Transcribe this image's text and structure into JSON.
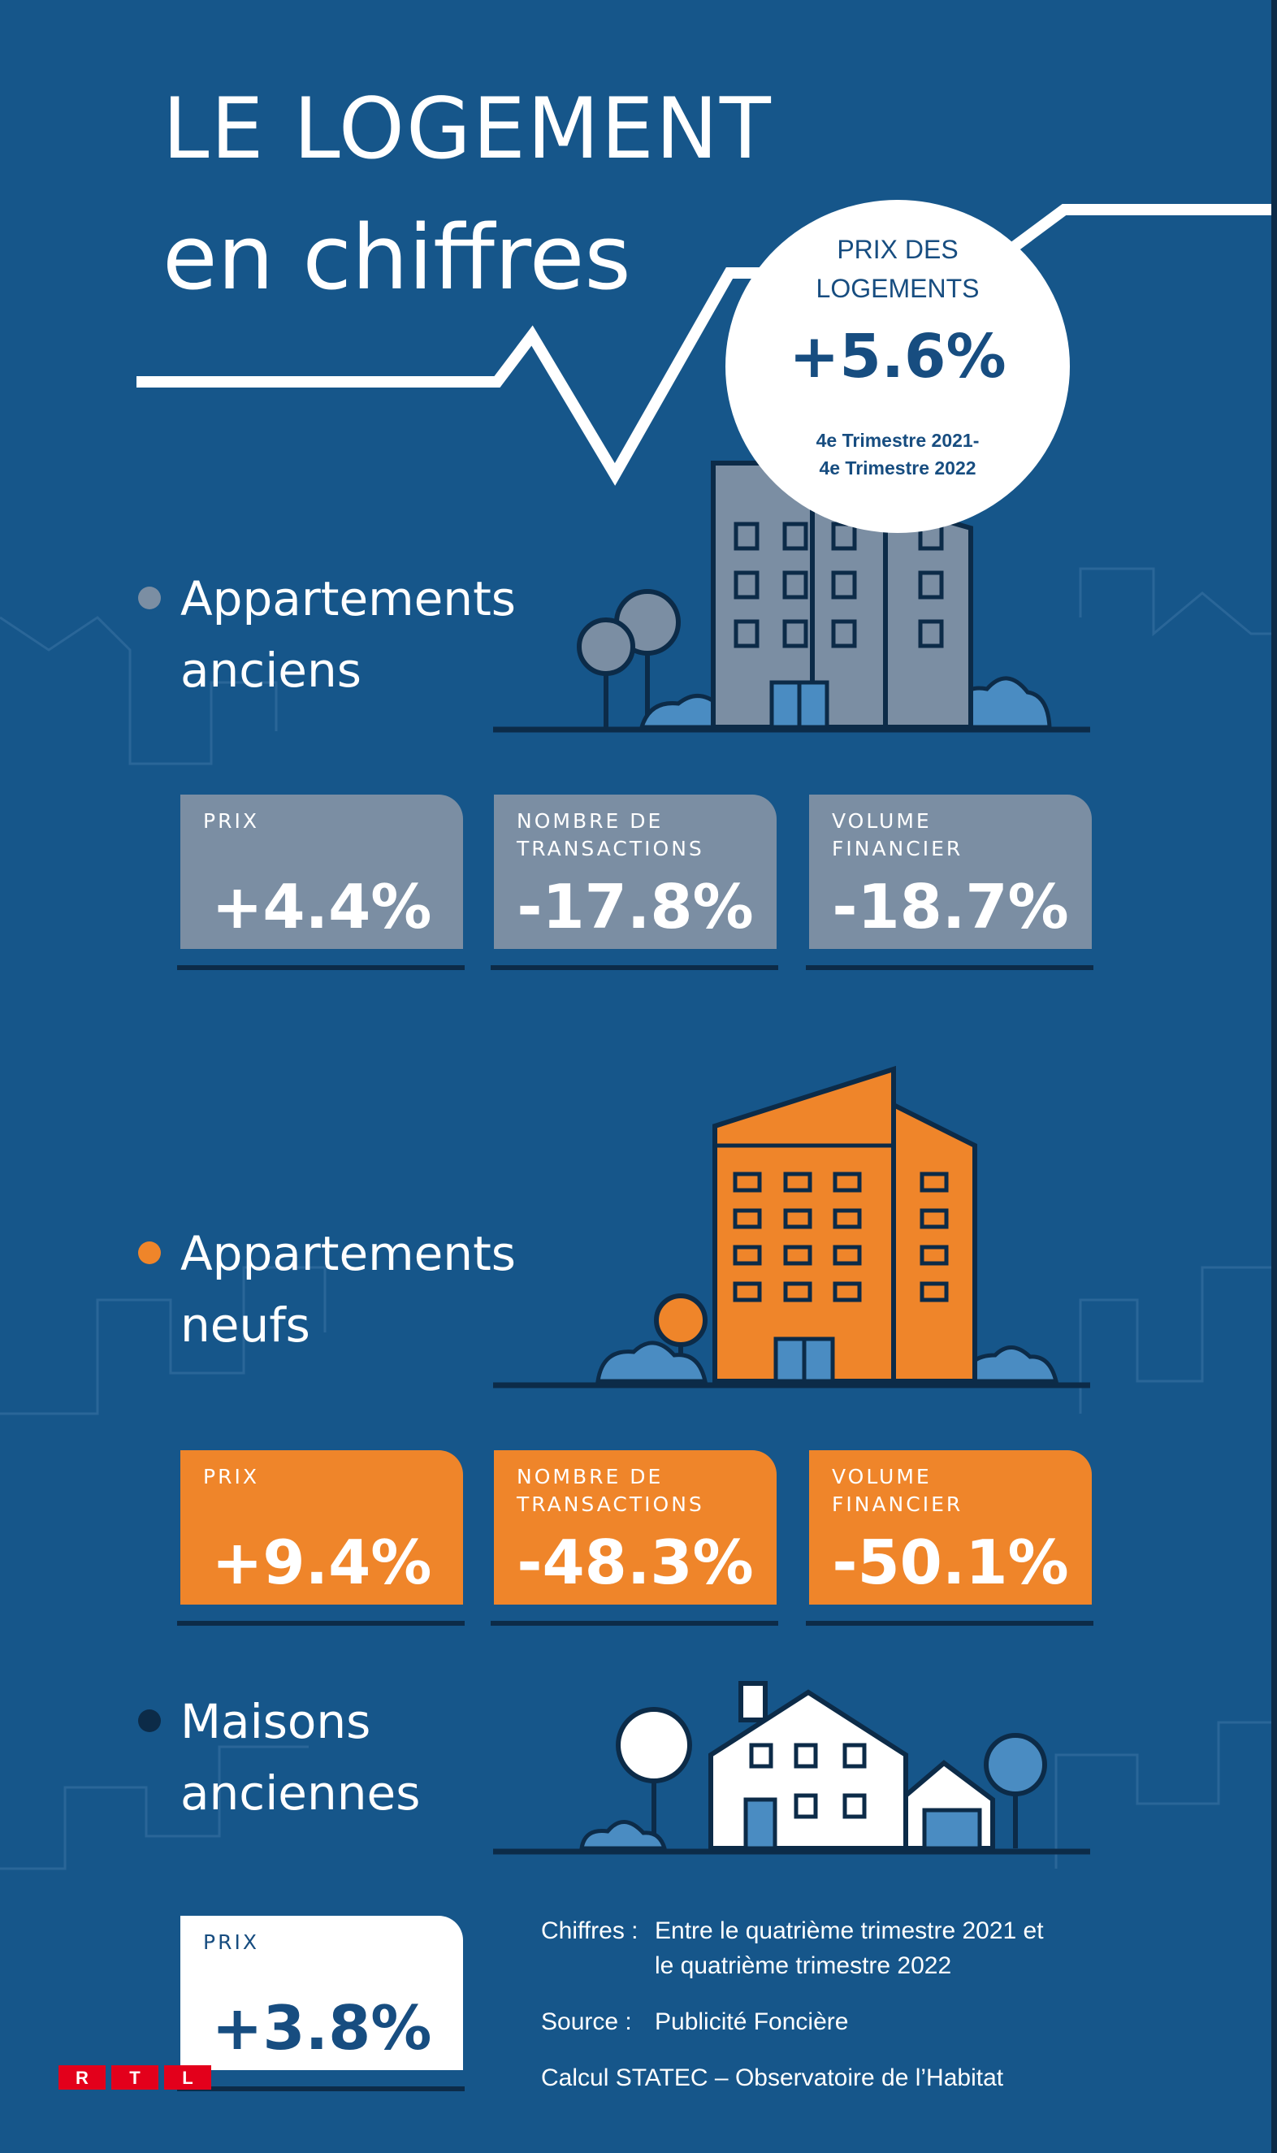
{
  "title": {
    "line1": "LE LOGEMENT",
    "line2": "en chiffres"
  },
  "headline_stat": {
    "label_line1": "PRIX DES",
    "label_line2": "LOGEMENTS",
    "value": "+5.6%",
    "period_line1": "4e Trimestre 2021-",
    "period_line2": "4e Trimestre 2022"
  },
  "sections": [
    {
      "title_line1": "Appartements",
      "title_line2": "anciens",
      "color": "#7b8ea3",
      "cards": [
        {
          "label": "PRIX",
          "value": "+4.4%"
        },
        {
          "label": "NOMBRE DE\nTRANSACTIONS",
          "value": "-17.8%"
        },
        {
          "label": "VOLUME\nFINANCIER",
          "value": "-18.7%"
        }
      ]
    },
    {
      "title_line1": "Appartements",
      "title_line2": "neufs",
      "color": "#ef852a",
      "cards": [
        {
          "label": "PRIX",
          "value": "+9.4%"
        },
        {
          "label": "NOMBRE DE\nTRANSACTIONS",
          "value": "-48.3%"
        },
        {
          "label": "VOLUME\nFINANCIER",
          "value": "-50.1%"
        }
      ]
    },
    {
      "title_line1": "Maisons",
      "title_line2": "anciennes",
      "color": "#0c2b48",
      "cards": [
        {
          "label": "PRIX",
          "value": "+3.8%"
        }
      ]
    }
  ],
  "notes": {
    "chiffres_key": "Chiffres :",
    "chiffres_line1": "Entre le quatrième trimestre 2021 et",
    "chiffres_line2": "le quatrième trimestre 2022",
    "source_key": "Source :",
    "source_value": "Publicité Foncière",
    "calcul": "Calcul STATEC – Observatoire de l’Habitat"
  },
  "logo": {
    "letters": [
      "R",
      "T",
      "L"
    ],
    "color": "#e3001b"
  },
  "colors": {
    "background": "#16568a",
    "dark_navy": "#0c2b48",
    "accent_orange": "#ef852a",
    "accent_grey": "#7b8ea3",
    "light_blue": "#4a8cc2",
    "text_blue": "#174d80"
  }
}
